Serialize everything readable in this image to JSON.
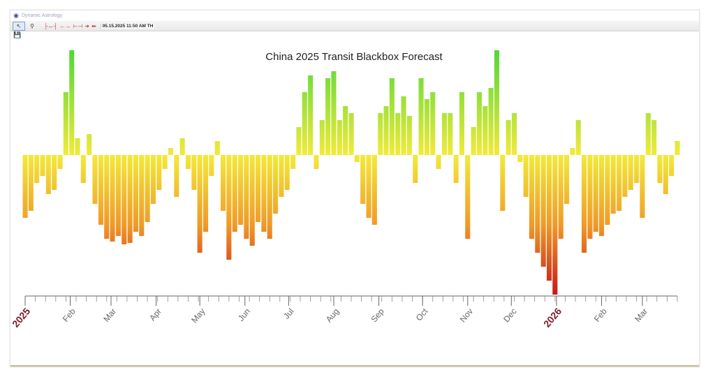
{
  "window": {
    "app_title": "Dynamic Astrology",
    "app_icon": "app-logo-icon"
  },
  "toolbar": {
    "tools": [
      {
        "name": "pointer-tool",
        "icon": "pointer-icon"
      },
      {
        "name": "zoom-tool",
        "icon": "magnifier-icon"
      },
      {
        "name": "span-tool",
        "icon": "span-arrows-icon"
      },
      {
        "name": "expand-tool",
        "icon": "expand-arrows-icon"
      },
      {
        "name": "measure-tool",
        "icon": "measure-icon"
      },
      {
        "name": "step-forward-tool",
        "icon": "arrow-right-icon"
      },
      {
        "name": "step-back-tool",
        "icon": "arrow-left-icon"
      }
    ],
    "datetime": "05.15.2025  11:50 AM TH",
    "save_icon": "save-icon"
  },
  "chart_data": {
    "type": "bar",
    "title": "China 2025 Transit Blackbox Forecast",
    "xlabel": "",
    "ylabel": "",
    "x_range": [
      "2025-01-01",
      "2026-03-25"
    ],
    "ylim": [
      -100,
      85
    ],
    "grid": false,
    "colors": {
      "positive_peak": "#3ad53a",
      "neutral": "#f2ea3a",
      "negative_mid": "#f09a28",
      "negative_peak": "#c81818"
    },
    "x_tick_labels": [
      {
        "date": "2025-01-01",
        "label": "2025",
        "style": "year"
      },
      {
        "date": "2025-02-01",
        "label": "Feb"
      },
      {
        "date": "2025-03-01",
        "label": "Mar"
      },
      {
        "date": "2025-04-01",
        "label": "Apr"
      },
      {
        "date": "2025-05-01",
        "label": "May"
      },
      {
        "date": "2025-06-01",
        "label": "Jun"
      },
      {
        "date": "2025-07-01",
        "label": "Jul"
      },
      {
        "date": "2025-08-01",
        "label": "Aug"
      },
      {
        "date": "2025-09-01",
        "label": "Sep"
      },
      {
        "date": "2025-10-01",
        "label": "Oct"
      },
      {
        "date": "2025-11-01",
        "label": "Nov"
      },
      {
        "date": "2025-12-01",
        "label": "Dec"
      },
      {
        "date": "2026-01-01",
        "label": "2026",
        "style": "year"
      },
      {
        "date": "2026-02-01",
        "label": "Feb"
      },
      {
        "date": "2026-03-01",
        "label": "Mar"
      }
    ],
    "series": [
      {
        "dates": [
          "2025-01-01",
          "2025-01-05",
          "2025-01-09",
          "2025-01-13",
          "2025-01-17",
          "2025-01-21",
          "2025-01-25",
          "2025-01-29",
          "2025-02-02",
          "2025-02-06",
          "2025-02-10",
          "2025-02-14",
          "2025-02-18",
          "2025-02-22",
          "2025-02-26",
          "2025-03-02",
          "2025-03-06",
          "2025-03-10",
          "2025-03-14",
          "2025-03-18",
          "2025-03-22",
          "2025-03-26",
          "2025-03-30",
          "2025-04-03",
          "2025-04-07",
          "2025-04-11",
          "2025-04-15",
          "2025-04-19",
          "2025-04-23",
          "2025-04-27",
          "2025-05-01",
          "2025-05-05",
          "2025-05-09",
          "2025-05-13",
          "2025-05-17",
          "2025-05-21",
          "2025-05-25",
          "2025-05-29",
          "2025-06-02",
          "2025-06-06",
          "2025-06-10",
          "2025-06-14",
          "2025-06-18",
          "2025-06-22",
          "2025-06-26",
          "2025-06-30",
          "2025-07-04",
          "2025-07-08",
          "2025-07-12",
          "2025-07-16",
          "2025-07-20",
          "2025-07-24",
          "2025-07-28",
          "2025-08-01",
          "2025-08-05",
          "2025-08-09",
          "2025-08-13",
          "2025-08-17",
          "2025-08-21",
          "2025-08-25",
          "2025-08-29",
          "2025-09-02",
          "2025-09-06",
          "2025-09-10",
          "2025-09-14",
          "2025-09-18",
          "2025-09-22",
          "2025-09-26",
          "2025-09-30",
          "2025-10-04",
          "2025-10-08",
          "2025-10-12",
          "2025-10-16",
          "2025-10-20",
          "2025-10-24",
          "2025-10-28",
          "2025-11-01",
          "2025-11-05",
          "2025-11-09",
          "2025-11-13",
          "2025-11-17",
          "2025-11-21",
          "2025-11-25",
          "2025-11-29",
          "2025-12-03",
          "2025-12-07",
          "2025-12-11",
          "2025-12-15",
          "2025-12-19",
          "2025-12-23",
          "2025-12-27",
          "2025-12-31",
          "2026-01-04",
          "2026-01-08",
          "2026-01-12",
          "2026-01-16",
          "2026-01-20",
          "2026-01-24",
          "2026-01-28",
          "2026-02-01",
          "2026-02-05",
          "2026-02-09",
          "2026-02-13",
          "2026-02-17",
          "2026-02-21",
          "2026-02-25",
          "2026-03-01",
          "2026-03-05",
          "2026-03-09",
          "2026-03-13",
          "2026-03-17",
          "2026-03-21",
          "2026-03-25"
        ],
        "values": [
          -45,
          -40,
          -20,
          -15,
          -28,
          -25,
          -10,
          45,
          75,
          12,
          -20,
          15,
          -35,
          -50,
          -60,
          -62,
          -58,
          -64,
          -63,
          -55,
          -58,
          -48,
          -35,
          -25,
          -10,
          5,
          -30,
          12,
          -10,
          -25,
          -70,
          -55,
          -15,
          10,
          -40,
          -75,
          -55,
          -50,
          -60,
          -65,
          -48,
          -55,
          -60,
          -42,
          -30,
          -25,
          -10,
          20,
          45,
          57,
          -10,
          25,
          55,
          60,
          25,
          35,
          30,
          -5,
          -35,
          -45,
          -50,
          30,
          35,
          55,
          30,
          42,
          28,
          -20,
          55,
          40,
          45,
          -10,
          30,
          30,
          -20,
          45,
          -60,
          20,
          45,
          35,
          48,
          75,
          -40,
          25,
          30,
          -5,
          -30,
          -60,
          -70,
          -80,
          -90,
          -100,
          -60,
          -35,
          5,
          25,
          -70,
          -60,
          -55,
          -58,
          -50,
          -42,
          -40,
          -30,
          -25,
          -20,
          -45,
          30,
          25,
          -20,
          -28,
          -15,
          10
        ]
      }
    ]
  }
}
